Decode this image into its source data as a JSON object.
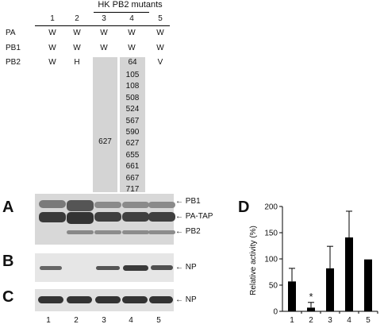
{
  "table": {
    "mutants_header": "HK PB2 mutants",
    "lanes": [
      "1",
      "2",
      "3",
      "4",
      "5"
    ],
    "rows": [
      {
        "label": "PA",
        "values": [
          "W",
          "W",
          "W",
          "W",
          "W"
        ]
      },
      {
        "label": "PB1",
        "values": [
          "W",
          "W",
          "W",
          "W",
          "W"
        ]
      },
      {
        "label": "PB2",
        "values": [
          "W",
          "H",
          "",
          "64",
          "V"
        ]
      }
    ],
    "lane3_mutation": "627",
    "lane4_mutations": [
      "105",
      "108",
      "508",
      "524",
      "567",
      "590",
      "627",
      "655",
      "661",
      "667",
      "717"
    ]
  },
  "panels": {
    "A": {
      "letter": "A",
      "bands": [
        "PB1",
        "PA-TAP",
        "PB2"
      ]
    },
    "B": {
      "letter": "B",
      "bands": [
        "NP"
      ]
    },
    "C": {
      "letter": "C",
      "bands": [
        "NP"
      ]
    },
    "lane_numbers": [
      "1",
      "2",
      "3",
      "4",
      "5"
    ]
  },
  "chart_data": {
    "type": "bar",
    "panel_letter": "D",
    "categories": [
      "1",
      "2",
      "3",
      "4",
      "5"
    ],
    "values": [
      57,
      7,
      82,
      141,
      99
    ],
    "errors": [
      25,
      10,
      42,
      50,
      0
    ],
    "significance": {
      "category": "2",
      "mark": "*"
    },
    "ylabel": "Relative activity (%)",
    "ylim": [
      0,
      200
    ],
    "yticks": [
      "0",
      "50",
      "100",
      "150",
      "200"
    ]
  }
}
